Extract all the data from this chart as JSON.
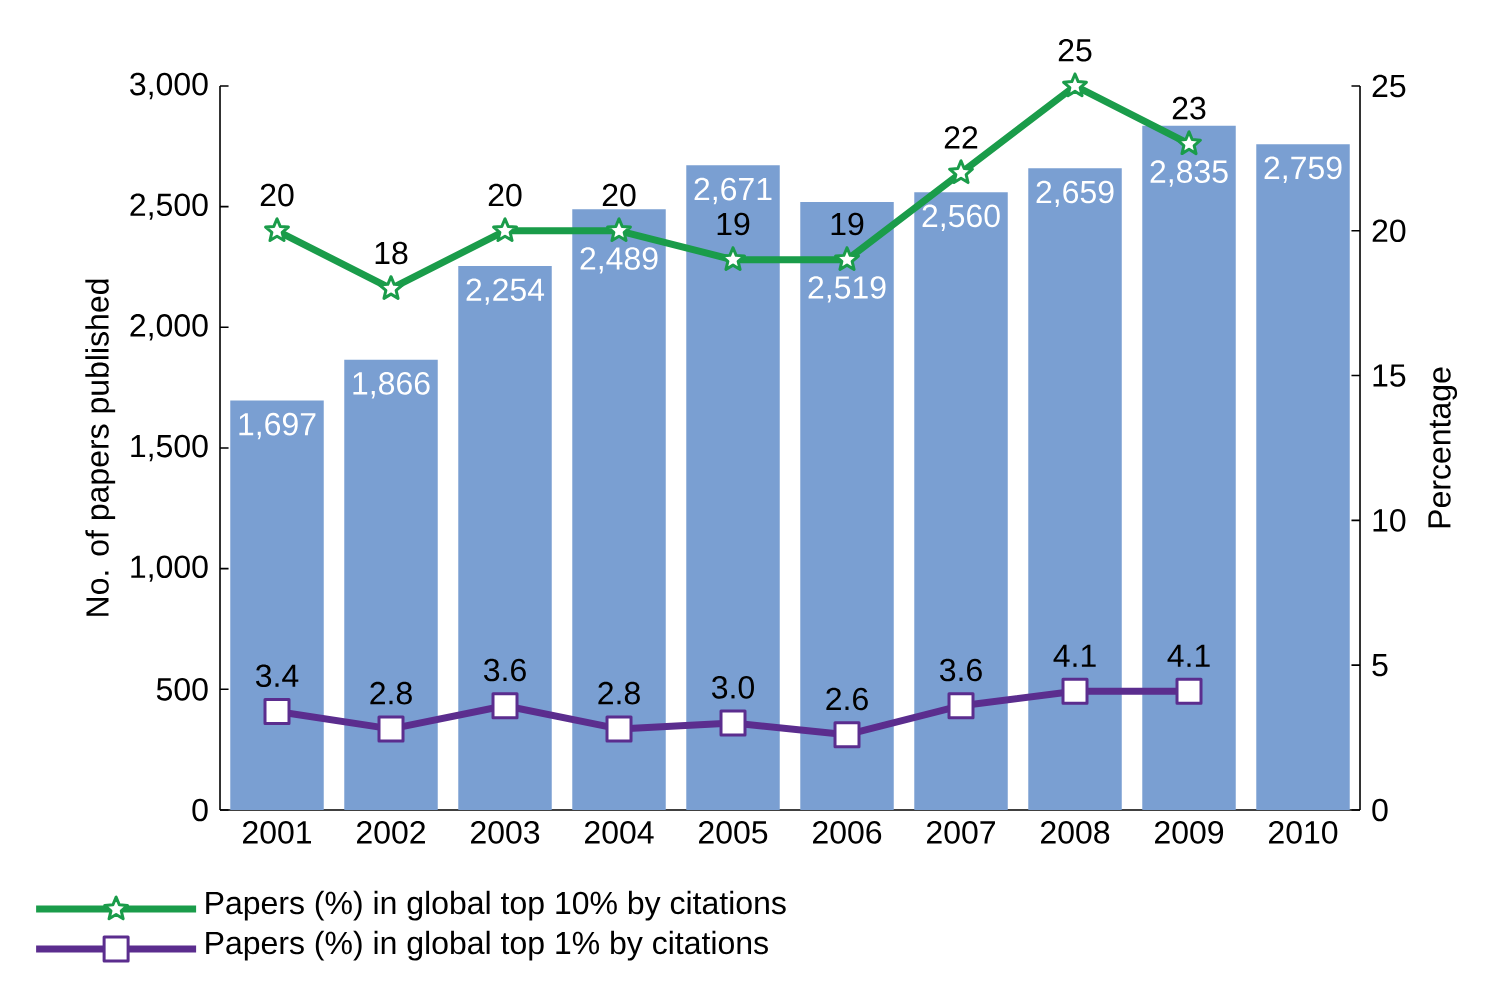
{
  "chart_data": {
    "type": "bar",
    "categories": [
      "2001",
      "2002",
      "2003",
      "2004",
      "2005",
      "2006",
      "2007",
      "2008",
      "2009",
      "2010"
    ],
    "ylabel": "No. of papers published",
    "y2label": "Percentage",
    "ylim": [
      0,
      3000
    ],
    "yticks": [
      0,
      500,
      {
        "value": 1000,
        "label": "1,000"
      },
      {
        "value": 1500,
        "label": "1,500"
      },
      {
        "value": 2000,
        "label": "2,000"
      },
      {
        "value": 2500,
        "label": "2,500"
      },
      {
        "value": 3000,
        "label": "3,000"
      }
    ],
    "y2lim": [
      0,
      25
    ],
    "y2ticks": [
      0,
      5,
      10,
      15,
      20,
      25
    ],
    "legend": "bottom left",
    "series": [
      {
        "color": "#7a9fd2",
        "values": [
          1697,
          1866,
          2254,
          2489,
          2671,
          2519,
          2560,
          2659,
          2835,
          2759
        ],
        "value_labels": [
          "1,697",
          "1,866",
          "2,254",
          "2,489",
          "2,671",
          "2,519",
          "2,560",
          "2,659",
          "2,835",
          "2,759"
        ]
      },
      {
        "type": "line",
        "axis": "y2",
        "name": "Papers (%) in global top 10% by citations",
        "color": "#1a9c4a",
        "marker": "star",
        "values": [
          20,
          18,
          20,
          20,
          19,
          19,
          22,
          25,
          23,
          null
        ],
        "value_labels": [
          "20",
          "18",
          "20",
          "20",
          "19",
          "19",
          "22",
          "25",
          "23",
          null
        ]
      },
      {
        "type": "line",
        "axis": "y2",
        "name": "Papers (%) in global top 1% by citations",
        "color": "#5b2d8e",
        "marker": "square",
        "values": [
          3.4,
          2.8,
          3.6,
          2.8,
          3.0,
          2.6,
          3.6,
          4.1,
          4.1,
          null
        ],
        "value_labels": [
          "3.4",
          "2.8",
          "3.6",
          "2.8",
          "3.0",
          "2.6",
          "3.6",
          "4.1",
          "4.1",
          null
        ]
      }
    ]
  }
}
